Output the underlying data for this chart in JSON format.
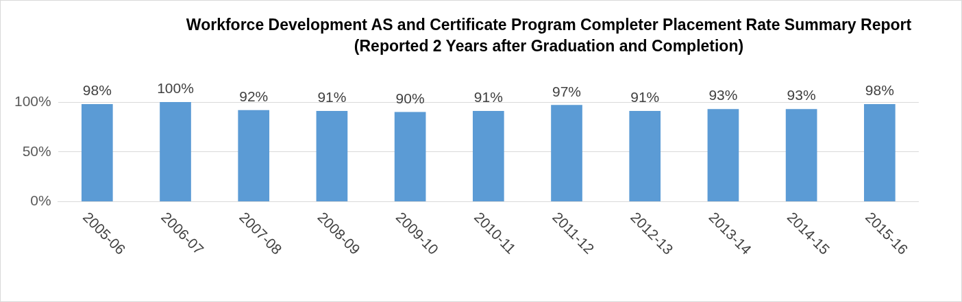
{
  "chart_data": {
    "type": "bar",
    "title": "Workforce Development AS and Certificate Program Completer Placement Rate Summary Report (Reported 2 Years after Graduation and Completion)",
    "categories": [
      "2005-06",
      "2006-07",
      "2007-08",
      "2008-09",
      "2009-10",
      "2010-11",
      "2011-12",
      "2012-13",
      "2013-14",
      "2014-15",
      "2015-16"
    ],
    "values": [
      98,
      100,
      92,
      91,
      90,
      91,
      97,
      91,
      93,
      93,
      98
    ],
    "value_labels": [
      "98%",
      "100%",
      "92%",
      "91%",
      "90%",
      "91%",
      "97%",
      "91%",
      "93%",
      "93%",
      "98%"
    ],
    "color": "#5b9bd5",
    "ylim": [
      0,
      100
    ],
    "yticks": [
      {
        "value": 0,
        "label": "0%"
      },
      {
        "value": 50,
        "label": "50%"
      },
      {
        "value": 100,
        "label": "100%"
      }
    ],
    "grid": "y",
    "legend": false
  }
}
